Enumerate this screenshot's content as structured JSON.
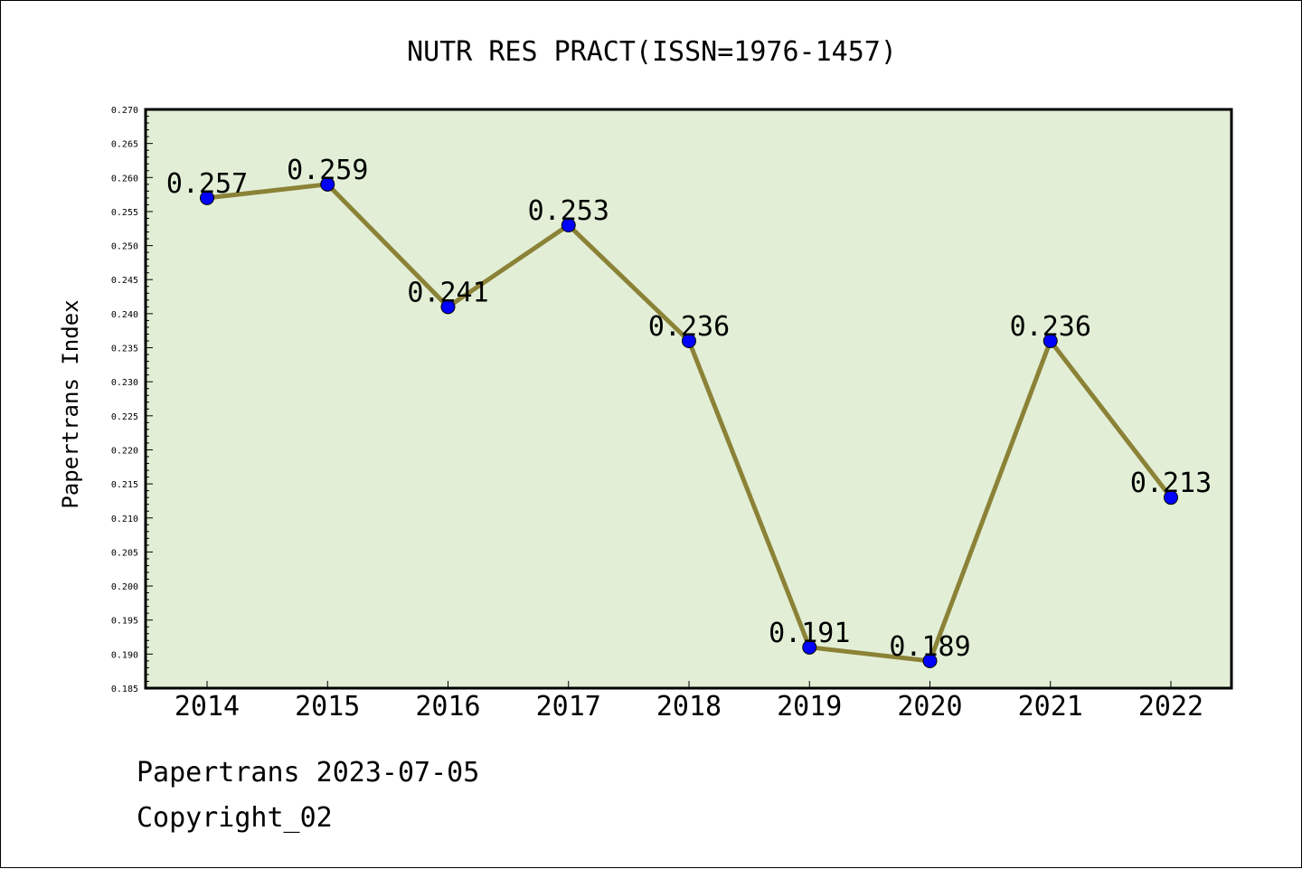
{
  "chart_data": {
    "type": "line",
    "title": "NUTR RES PRACT(ISSN=1976-1457)",
    "xlabel": "",
    "ylabel": "Papertrans Index",
    "categories": [
      "2014",
      "2015",
      "2016",
      "2017",
      "2018",
      "2019",
      "2020",
      "2021",
      "2022"
    ],
    "series": [
      {
        "values": [
          0.257,
          0.259,
          0.241,
          0.253,
          0.236,
          0.191,
          0.189,
          0.236,
          0.213
        ],
        "labels": [
          "0.257",
          "0.259",
          "0.241",
          "0.253",
          "0.236",
          "0.191",
          "0.189",
          "0.236",
          "0.213"
        ]
      }
    ],
    "ylim": [
      0.185,
      0.27
    ],
    "yticks": [
      "0.185",
      "0.190",
      "0.195",
      "0.200",
      "0.205",
      "0.210",
      "0.215",
      "0.220",
      "0.225",
      "0.230",
      "0.235",
      "0.240",
      "0.245",
      "0.250",
      "0.255",
      "0.260",
      "0.265",
      "0.270"
    ],
    "grid": false,
    "legend": "none",
    "colors": {
      "plot_background": "#e2efd6",
      "line": "#8b8237",
      "marker": "#0000ff",
      "axis": "#000000"
    }
  },
  "footer": {
    "line1": "Papertrans 2023-07-05",
    "line2": "Copyright_02"
  }
}
